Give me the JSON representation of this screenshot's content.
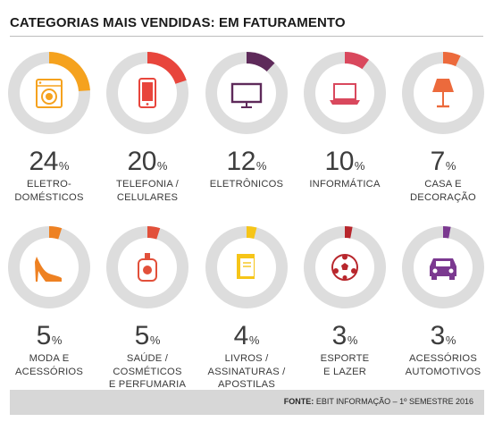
{
  "title": "CATEGORIAS MAIS VENDIDAS: EM FATURAMENTO",
  "source": {
    "label": "FONTE:",
    "text": "EBIT INFORMAÇÃO – 1º SEMESTRE 2016"
  },
  "colors": {
    "ring_bg": "#dddddd",
    "inner_bg": "#ffffff"
  },
  "chart_data": {
    "type": "pie",
    "title": "CATEGORIAS MAIS VENDIDAS: EM FATURAMENTO",
    "unit": "%",
    "categories": [
      {
        "label_lines": [
          "ELETRO-",
          "DOMÉSTICOS"
        ],
        "value": 24,
        "color": "#f5a21e",
        "icon": "washing-machine-icon"
      },
      {
        "label_lines": [
          "TELEFONIA /",
          "CELULARES"
        ],
        "value": 20,
        "color": "#e8453c",
        "icon": "smartphone-icon"
      },
      {
        "label_lines": [
          "ELETRÔNICOS"
        ],
        "value": 12,
        "color": "#5e2a5a",
        "icon": "television-icon"
      },
      {
        "label_lines": [
          "INFORMÁTICA"
        ],
        "value": 10,
        "color": "#d9485d",
        "icon": "laptop-icon"
      },
      {
        "label_lines": [
          "CASA E",
          "DECORAÇÃO"
        ],
        "value": 7,
        "color": "#ec6a3c",
        "icon": "lamp-icon"
      },
      {
        "label_lines": [
          "MODA E",
          "ACESSÓRIOS"
        ],
        "value": 5,
        "color": "#ee8122",
        "icon": "high-heel-shoe-icon"
      },
      {
        "label_lines": [
          "SAÚDE /",
          "COSMÉTICOS",
          "E PERFUMARIA"
        ],
        "value": 5,
        "color": "#e2503a",
        "icon": "perfume-bottle-icon"
      },
      {
        "label_lines": [
          "LIVROS /",
          "ASSINATURAS /",
          "APOSTILAS"
        ],
        "value": 4,
        "color": "#f6c518",
        "icon": "book-icon"
      },
      {
        "label_lines": [
          "ESPORTE",
          "E LAZER"
        ],
        "value": 3,
        "color": "#b8262c",
        "icon": "soccer-ball-icon"
      },
      {
        "label_lines": [
          "ACESSÓRIOS",
          "AUTOMOTIVOS"
        ],
        "value": 3,
        "color": "#7b3990",
        "icon": "car-icon"
      }
    ]
  }
}
